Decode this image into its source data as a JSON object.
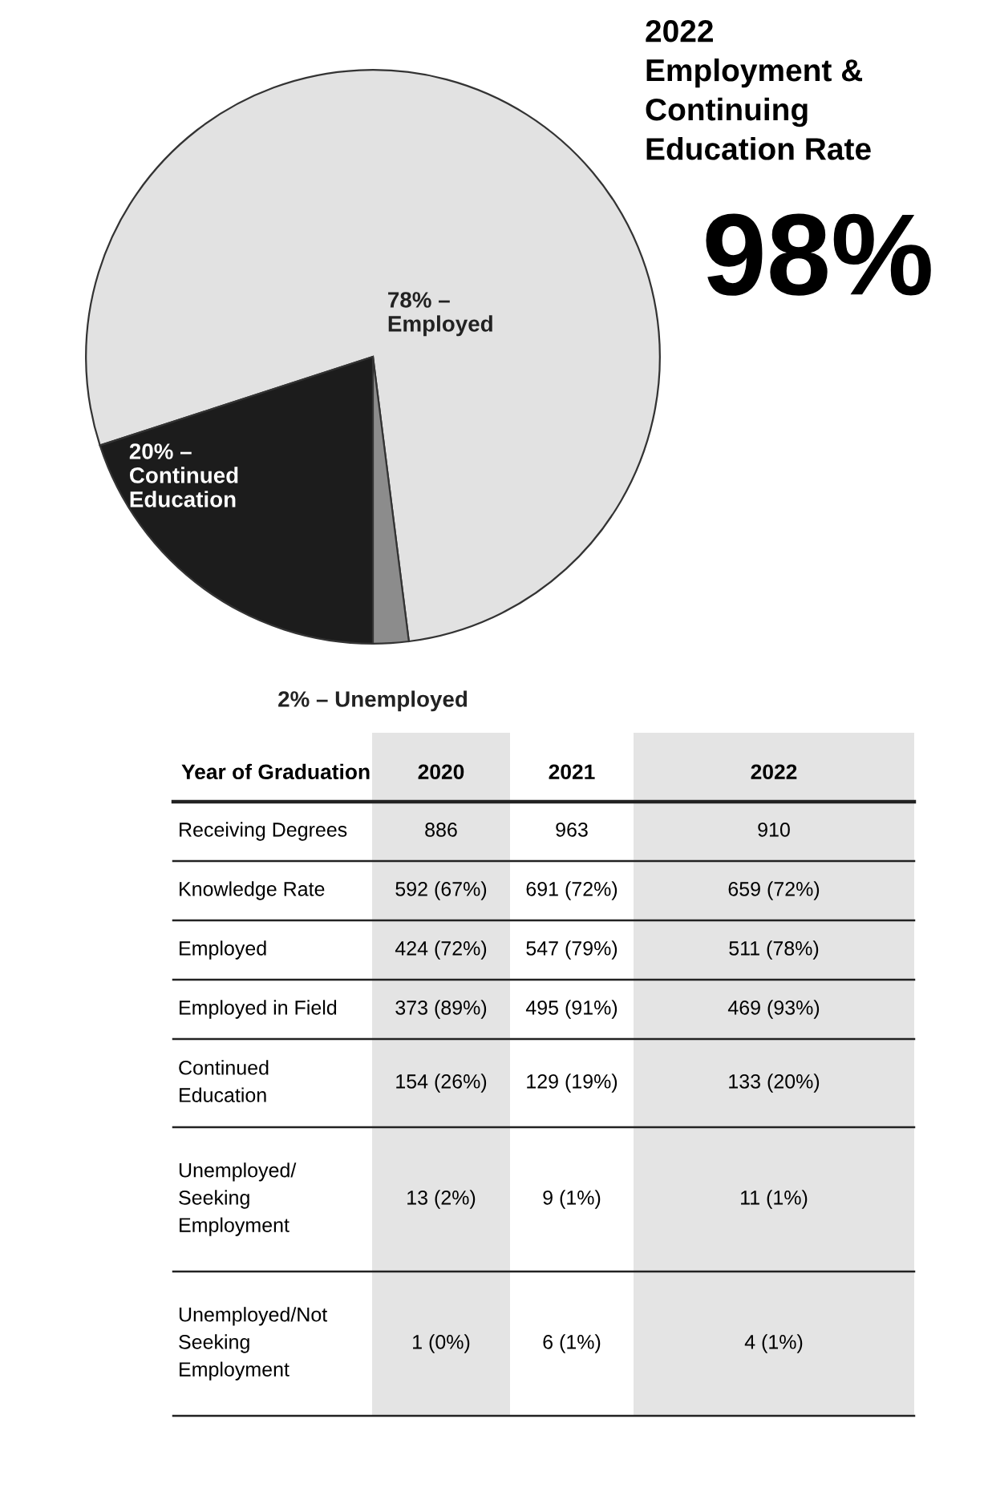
{
  "chart_data": [
    {
      "type": "pie",
      "title": "2022\nEmployment &\nContinuing\nEducation Rate",
      "annotations": [
        "98%"
      ],
      "categories": [
        null,
        null,
        null
      ],
      "values": [
        78,
        20,
        2
      ],
      "colors": [
        "#e2e2e2",
        "#1c1c1c",
        "#8c8c8c"
      ],
      "value_labels": [
        "78% –\nEmployed",
        "20% –\nContinued\nEducation",
        "2% – Unemployed"
      ]
    },
    {
      "type": "other",
      "title": "Year of Graduation",
      "categories": [
        "2020",
        "2021",
        "2022"
      ],
      "y_categories": [
        "Receiving Degrees",
        "Knowledge Rate",
        "Employed",
        "Employed in Field",
        "Continued\nEducation",
        "Unemployed/\nSeeking\nEmployment",
        "Unemployed/Not\nSeeking\nEmployment"
      ],
      "cell_labels": [
        [
          "886",
          "963",
          "910"
        ],
        [
          "592 (67%)",
          "691 (72%)",
          "659 (72%)"
        ],
        [
          "424 (72%)",
          "547 (79%)",
          "511 (78%)"
        ],
        [
          "373 (89%)",
          "495 (91%)",
          "469 (93%)"
        ],
        [
          "154 (26%)",
          "129 (19%)",
          "133 (20%)"
        ],
        [
          "13 (2%)",
          "9 (1%)",
          "11 (1%)"
        ],
        [
          "1 (0%)",
          "6 (1%)",
          "4 (1%)"
        ]
      ]
    }
  ]
}
